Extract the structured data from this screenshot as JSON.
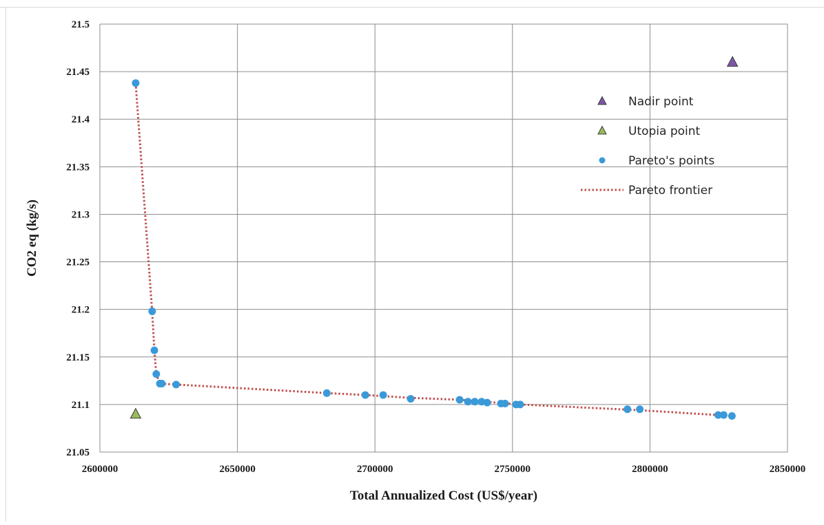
{
  "chart_data": {
    "type": "scatter",
    "xlabel": "Total Annualized Cost (US$/year)",
    "ylabel": "CO2 eq (kg/s)",
    "xlim": [
      2600000,
      2850000
    ],
    "ylim": [
      21.05,
      21.5
    ],
    "x_ticks": [
      "2600000",
      "2650000",
      "2700000",
      "2750000",
      "2800000",
      "2850000"
    ],
    "y_ticks": [
      "21.05",
      "21.1",
      "21.15",
      "21.2",
      "21.25",
      "21.3",
      "21.35",
      "21.4",
      "21.45",
      "21.5"
    ],
    "grid": true,
    "legend_position": "right",
    "series": [
      {
        "name": "Nadir point",
        "marker": "triangle",
        "color": "#7e57a8",
        "points": [
          [
            2830000,
            21.46
          ]
        ]
      },
      {
        "name": "Utopia point",
        "marker": "triangle",
        "color": "#9bbb59",
        "points": [
          [
            2613000,
            21.09
          ]
        ]
      },
      {
        "name": "Pareto's points",
        "marker": "circle",
        "color": "#3a9ad9",
        "points": [
          [
            2613000,
            21.438
          ],
          [
            2619000,
            21.198
          ],
          [
            2619800,
            21.157
          ],
          [
            2620500,
            21.132
          ],
          [
            2621800,
            21.122
          ],
          [
            2622500,
            21.122
          ],
          [
            2627700,
            21.121
          ],
          [
            2682500,
            21.112
          ],
          [
            2696500,
            21.11
          ],
          [
            2703000,
            21.11
          ],
          [
            2713000,
            21.106
          ],
          [
            2730800,
            21.105
          ],
          [
            2733800,
            21.103
          ],
          [
            2736300,
            21.103
          ],
          [
            2738800,
            21.103
          ],
          [
            2740800,
            21.102
          ],
          [
            2745800,
            21.101
          ],
          [
            2747300,
            21.101
          ],
          [
            2751300,
            21.1
          ],
          [
            2752800,
            21.1
          ],
          [
            2791800,
            21.095
          ],
          [
            2796300,
            21.095
          ],
          [
            2824800,
            21.089
          ],
          [
            2826800,
            21.089
          ],
          [
            2829800,
            21.088
          ]
        ]
      },
      {
        "name": "Pareto frontier",
        "style": "dotted-line",
        "color": "#c0504d",
        "points": [
          [
            2613000,
            21.438
          ],
          [
            2619000,
            21.198
          ],
          [
            2619800,
            21.157
          ],
          [
            2620500,
            21.132
          ],
          [
            2621800,
            21.122
          ],
          [
            2627700,
            21.121
          ],
          [
            2682500,
            21.112
          ],
          [
            2696500,
            21.11
          ],
          [
            2713000,
            21.107
          ],
          [
            2730800,
            21.105
          ],
          [
            2752800,
            21.1
          ],
          [
            2796300,
            21.094
          ],
          [
            2829800,
            21.088
          ]
        ]
      }
    ]
  }
}
